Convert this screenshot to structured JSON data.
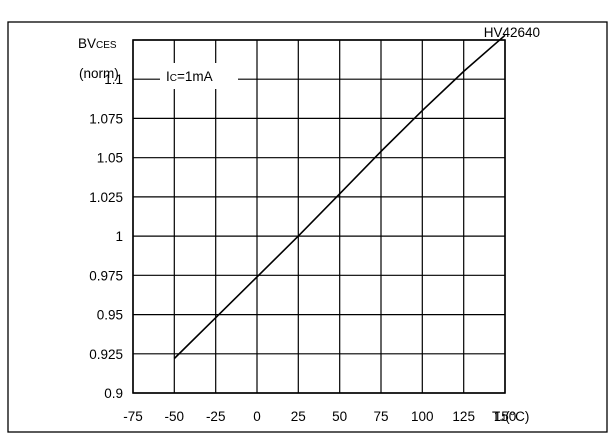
{
  "chart_data": {
    "type": "line",
    "code": "HV42640",
    "y_label_line1": {
      "main": "BV",
      "sub": "CES"
    },
    "y_label_line2": "(norm)",
    "x_label": {
      "main": "T",
      "sub": "J",
      "unit": "(°C)"
    },
    "annotation": {
      "main": "I",
      "sub": "C",
      "rest": "=1mA"
    },
    "xlim": [
      -75,
      150
    ],
    "ylim": [
      0.9,
      1.125
    ],
    "x_ticks": [
      -75,
      -50,
      -25,
      0,
      25,
      50,
      75,
      100,
      125,
      150
    ],
    "y_ticks": [
      0.9,
      0.925,
      0.95,
      0.975,
      1,
      1.025,
      1.05,
      1.075,
      1.1
    ],
    "x_tick_labels": [
      "-75",
      "-50",
      "-25",
      "0",
      "25",
      "50",
      "75",
      "100",
      "125",
      "150"
    ],
    "y_tick_labels": [
      "0.9",
      "0.925",
      "0.95",
      "0.975",
      "1",
      "1.025",
      "1.05",
      "1.075",
      "1.1"
    ],
    "grid": true,
    "series": [
      {
        "x": [
          -50,
          -25,
          0,
          25,
          50,
          75,
          100,
          125,
          150
        ],
        "y": [
          0.922,
          0.948,
          0.974,
          1.0,
          1.027,
          1.054,
          1.08,
          1.105,
          1.128
        ]
      }
    ]
  }
}
